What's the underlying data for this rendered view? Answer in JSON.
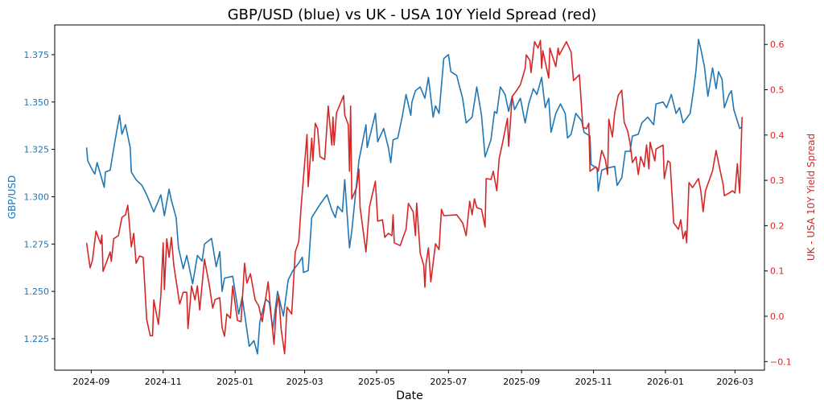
{
  "chart_data": {
    "type": "line",
    "title": "GBP/USD (blue) vs UK - USA 10Y Yield Spread (red)",
    "xlabel": "Date",
    "xlim": [
      "2024-08-01",
      "2026-03-26"
    ],
    "x_ticks": [
      "2024-09",
      "2024-11",
      "2025-01",
      "2025-03",
      "2025-05",
      "2025-07",
      "2025-09",
      "2025-11",
      "2026-01",
      "2026-03"
    ],
    "grid": false,
    "legend": "none",
    "left_axis": {
      "label": "GBP/USD",
      "color": "#1f77b4",
      "ylim": [
        1.2084,
        1.3907
      ],
      "ticks": [
        "1.225",
        "1.250",
        "1.275",
        "1.300",
        "1.325",
        "1.350",
        "1.375"
      ]
    },
    "right_axis": {
      "label": "UK - USA 10Y Yield Spread",
      "color": "#d62728",
      "ylim": [
        -0.119,
        0.643
      ],
      "ticks": [
        "−0.1",
        "0.0",
        "0.1",
        "0.2",
        "0.3",
        "0.4",
        "0.5",
        "0.6"
      ]
    },
    "series": [
      {
        "axis": "left",
        "color": "#1f77b4",
        "dates": [
          "2024-08-28",
          "2024-08-29",
          "2024-09-02",
          "2024-09-04",
          "2024-09-06",
          "2024-09-12",
          "2024-09-13",
          "2024-09-17",
          "2024-09-21",
          "2024-09-25",
          "2024-09-27",
          "2024-09-30",
          "2024-10-04",
          "2024-10-05",
          "2024-10-09",
          "2024-10-14",
          "2024-10-18",
          "2024-10-24",
          "2024-10-30",
          "2024-11-02",
          "2024-11-06",
          "2024-11-08",
          "2024-11-12",
          "2024-11-14",
          "2024-11-18",
          "2024-11-21",
          "2024-11-26",
          "2024-11-30",
          "2024-12-04",
          "2024-12-06",
          "2024-12-12",
          "2024-12-16",
          "2024-12-19",
          "2024-12-21",
          "2024-12-23",
          "2024-12-30",
          "2025-01-04",
          "2025-01-07",
          "2025-01-13",
          "2025-01-17",
          "2025-01-20",
          "2025-01-22",
          "2025-01-27",
          "2025-01-30",
          "2025-02-02",
          "2025-02-06",
          "2025-02-11",
          "2025-02-15",
          "2025-02-19",
          "2025-02-24",
          "2025-02-27",
          "2025-02-28",
          "2025-03-04",
          "2025-03-07",
          "2025-03-11",
          "2025-03-14",
          "2025-03-20",
          "2025-03-24",
          "2025-03-27",
          "2025-03-29",
          "2025-04-02",
          "2025-04-04",
          "2025-04-08",
          "2025-04-10",
          "2025-04-16",
          "2025-04-22",
          "2025-04-23",
          "2025-04-30",
          "2025-05-02",
          "2025-05-07",
          "2025-05-11",
          "2025-05-13",
          "2025-05-15",
          "2025-05-19",
          "2025-05-23",
          "2025-05-26",
          "2025-05-30",
          "2025-05-31",
          "2025-06-03",
          "2025-06-07",
          "2025-06-11",
          "2025-06-14",
          "2025-06-18",
          "2025-06-20",
          "2025-06-23",
          "2025-06-27",
          "2025-07-01",
          "2025-07-03",
          "2025-07-08",
          "2025-07-10",
          "2025-07-13",
          "2025-07-16",
          "2025-07-21",
          "2025-07-25",
          "2025-07-29",
          "2025-08-01",
          "2025-08-06",
          "2025-08-09",
          "2025-08-11",
          "2025-08-14",
          "2025-08-18",
          "2025-08-21",
          "2025-08-24",
          "2025-08-26",
          "2025-08-31",
          "2025-09-04",
          "2025-09-07",
          "2025-09-11",
          "2025-09-14",
          "2025-09-18",
          "2025-09-21",
          "2025-09-24",
          "2025-09-26",
          "2025-09-30",
          "2025-10-04",
          "2025-10-08",
          "2025-10-10",
          "2025-10-13",
          "2025-10-17",
          "2025-10-22",
          "2025-10-24",
          "2025-10-29",
          "2025-10-30",
          "2025-11-04",
          "2025-11-05",
          "2025-11-08",
          "2025-11-12",
          "2025-11-19",
          "2025-11-21",
          "2025-11-25",
          "2025-11-28",
          "2025-12-02",
          "2025-12-04",
          "2025-12-09",
          "2025-12-12",
          "2025-12-17",
          "2025-12-22",
          "2025-12-24",
          "2025-12-30",
          "2026-01-02",
          "2026-01-06",
          "2026-01-10",
          "2026-01-13",
          "2026-01-16",
          "2026-01-22",
          "2026-01-25",
          "2026-01-27",
          "2026-01-29",
          "2026-01-31",
          "2026-02-03",
          "2026-02-06",
          "2026-02-10",
          "2026-02-13",
          "2026-02-15",
          "2026-02-18",
          "2026-02-20",
          "2026-02-24",
          "2026-02-26",
          "2026-02-28",
          "2026-03-03",
          "2026-03-05",
          "2026-03-07"
        ],
        "values": [
          1.326,
          1.319,
          1.314,
          1.312,
          1.318,
          1.305,
          1.313,
          1.314,
          1.329,
          1.343,
          1.333,
          1.338,
          1.326,
          1.313,
          1.309,
          1.306,
          1.301,
          1.292,
          1.301,
          1.29,
          1.304,
          1.298,
          1.289,
          1.273,
          1.262,
          1.269,
          1.254,
          1.269,
          1.266,
          1.275,
          1.278,
          1.263,
          1.271,
          1.25,
          1.257,
          1.258,
          1.238,
          1.247,
          1.221,
          1.224,
          1.217,
          1.234,
          1.246,
          1.244,
          1.23,
          1.25,
          1.237,
          1.256,
          1.261,
          1.265,
          1.268,
          1.26,
          1.261,
          1.289,
          1.293,
          1.296,
          1.301,
          1.293,
          1.289,
          1.295,
          1.292,
          1.309,
          1.273,
          1.282,
          1.319,
          1.338,
          1.326,
          1.344,
          1.329,
          1.336,
          1.326,
          1.318,
          1.33,
          1.331,
          1.343,
          1.354,
          1.343,
          1.35,
          1.356,
          1.358,
          1.352,
          1.363,
          1.342,
          1.348,
          1.344,
          1.373,
          1.375,
          1.366,
          1.364,
          1.359,
          1.352,
          1.339,
          1.342,
          1.358,
          1.343,
          1.321,
          1.33,
          1.345,
          1.344,
          1.358,
          1.354,
          1.345,
          1.353,
          1.346,
          1.352,
          1.339,
          1.349,
          1.357,
          1.354,
          1.363,
          1.347,
          1.352,
          1.334,
          1.344,
          1.349,
          1.344,
          1.331,
          1.333,
          1.344,
          1.34,
          1.334,
          1.332,
          1.317,
          1.315,
          1.303,
          1.314,
          1.315,
          1.316,
          1.306,
          1.31,
          1.324,
          1.324,
          1.332,
          1.333,
          1.339,
          1.342,
          1.338,
          1.349,
          1.35,
          1.347,
          1.354,
          1.344,
          1.347,
          1.339,
          1.344,
          1.357,
          1.367,
          1.383,
          1.378,
          1.369,
          1.353,
          1.368,
          1.357,
          1.366,
          1.362,
          1.347,
          1.354,
          1.356,
          1.346,
          1.34,
          1.336,
          1.337
        ]
      },
      {
        "axis": "right",
        "color": "#d62728",
        "dates": [
          "2024-08-28",
          "2024-08-31",
          "2024-09-02",
          "2024-09-05",
          "2024-09-09",
          "2024-09-10",
          "2024-09-11",
          "2024-09-17",
          "2024-09-18",
          "2024-09-20",
          "2024-09-24",
          "2024-09-27",
          "2024-09-30",
          "2024-10-02",
          "2024-10-05",
          "2024-10-07",
          "2024-10-09",
          "2024-10-12",
          "2024-10-15",
          "2024-10-18",
          "2024-10-21",
          "2024-10-23",
          "2024-10-24",
          "2024-10-28",
          "2024-10-30",
          "2024-11-01",
          "2024-11-02",
          "2024-11-04",
          "2024-11-06",
          "2024-11-08",
          "2024-11-10",
          "2024-11-15",
          "2024-11-18",
          "2024-11-21",
          "2024-11-22",
          "2024-11-25",
          "2024-11-28",
          "2024-11-30",
          "2024-12-02",
          "2024-12-06",
          "2024-12-10",
          "2024-12-13",
          "2024-12-15",
          "2024-12-19",
          "2024-12-21",
          "2024-12-23",
          "2024-12-25",
          "2024-12-28",
          "2024-12-30",
          "2025-01-01",
          "2025-01-03",
          "2025-01-06",
          "2025-01-09",
          "2025-01-11",
          "2025-01-14",
          "2025-01-18",
          "2025-01-21",
          "2025-01-24",
          "2025-01-29",
          "2025-01-31",
          "2025-02-03",
          "2025-02-05",
          "2025-02-07",
          "2025-02-09",
          "2025-02-12",
          "2025-02-14",
          "2025-02-18",
          "2025-02-21",
          "2025-02-24",
          "2025-02-26",
          "2025-03-03",
          "2025-03-04",
          "2025-03-07",
          "2025-03-08",
          "2025-03-10",
          "2025-03-12",
          "2025-03-14",
          "2025-03-18",
          "2025-03-21",
          "2025-03-24",
          "2025-03-25",
          "2025-03-26",
          "2025-03-28",
          "2025-04-03",
          "2025-04-04",
          "2025-04-07",
          "2025-04-08",
          "2025-04-09",
          "2025-04-10",
          "2025-04-14",
          "2025-04-16",
          "2025-04-17",
          "2025-04-22",
          "2025-04-25",
          "2025-04-30",
          "2025-05-02",
          "2025-05-06",
          "2025-05-08",
          "2025-05-11",
          "2025-05-14",
          "2025-05-15",
          "2025-05-16",
          "2025-05-21",
          "2025-05-26",
          "2025-05-28",
          "2025-06-01",
          "2025-06-03",
          "2025-06-04",
          "2025-06-07",
          "2025-06-10",
          "2025-06-11",
          "2025-06-12",
          "2025-06-14",
          "2025-06-16",
          "2025-06-20",
          "2025-06-23",
          "2025-06-25",
          "2025-06-27",
          "2025-07-08",
          "2025-07-13",
          "2025-07-16",
          "2025-07-19",
          "2025-07-21",
          "2025-07-23",
          "2025-07-25",
          "2025-07-29",
          "2025-08-01",
          "2025-08-02",
          "2025-08-06",
          "2025-08-08",
          "2025-08-11",
          "2025-08-13",
          "2025-08-16",
          "2025-08-20",
          "2025-08-21",
          "2025-08-24",
          "2025-08-28",
          "2025-08-31",
          "2025-09-04",
          "2025-09-05",
          "2025-09-08",
          "2025-09-09",
          "2025-09-11",
          "2025-09-12",
          "2025-09-15",
          "2025-09-17",
          "2025-09-18",
          "2025-09-19",
          "2025-09-24",
          "2025-09-25",
          "2025-09-30",
          "2025-10-02",
          "2025-10-03",
          "2025-10-09",
          "2025-10-13",
          "2025-10-15",
          "2025-10-20",
          "2025-10-23",
          "2025-10-26",
          "2025-10-28",
          "2025-10-29",
          "2025-11-03",
          "2025-11-05",
          "2025-11-08",
          "2025-11-11",
          "2025-11-13",
          "2025-11-14",
          "2025-11-17",
          "2025-11-19",
          "2025-11-22",
          "2025-11-25",
          "2025-11-27",
          "2025-11-30",
          "2025-12-02",
          "2025-12-04",
          "2025-12-07",
          "2025-12-09",
          "2025-12-11",
          "2025-12-14",
          "2025-12-16",
          "2025-12-18",
          "2025-12-19",
          "2025-12-23",
          "2025-12-24",
          "2025-12-30",
          "2025-12-31",
          "2026-01-03",
          "2026-01-05",
          "2026-01-08",
          "2026-01-12",
          "2026-01-14",
          "2026-01-16",
          "2026-01-18",
          "2026-01-19",
          "2026-01-21",
          "2026-01-24",
          "2026-01-29",
          "2026-01-31",
          "2026-02-02",
          "2026-02-04",
          "2026-02-10",
          "2026-02-13",
          "2026-02-15",
          "2026-02-19",
          "2026-02-20",
          "2026-02-24",
          "2026-02-27",
          "2026-03-01",
          "2026-03-03",
          "2026-03-05",
          "2026-03-07"
        ],
        "values": [
          0.162,
          0.107,
          0.124,
          0.188,
          0.16,
          0.179,
          0.099,
          0.142,
          0.121,
          0.171,
          0.178,
          0.218,
          0.224,
          0.245,
          0.153,
          0.183,
          0.117,
          0.133,
          0.13,
          -0.007,
          -0.043,
          -0.043,
          0.036,
          -0.018,
          0.046,
          0.162,
          0.059,
          0.171,
          0.13,
          0.174,
          0.112,
          0.027,
          0.053,
          0.053,
          -0.027,
          0.067,
          0.036,
          0.067,
          0.014,
          0.126,
          0.071,
          0.018,
          0.037,
          0.041,
          -0.025,
          -0.044,
          0.005,
          -0.004,
          0.067,
          0.028,
          -0.009,
          -0.012,
          0.117,
          0.073,
          0.094,
          0.036,
          0.023,
          -0.012,
          0.076,
          0.018,
          -0.062,
          0.018,
          0.046,
          -0.027,
          -0.083,
          0.02,
          0.005,
          0.142,
          0.165,
          0.242,
          0.401,
          0.286,
          0.393,
          0.343,
          0.426,
          0.414,
          0.352,
          0.346,
          0.464,
          0.378,
          0.44,
          0.378,
          0.449,
          0.487,
          0.444,
          0.423,
          0.32,
          0.464,
          0.259,
          0.284,
          0.325,
          0.24,
          0.142,
          0.242,
          0.298,
          0.21,
          0.213,
          0.174,
          0.183,
          0.178,
          0.224,
          0.162,
          0.156,
          0.192,
          0.249,
          0.231,
          0.178,
          0.25,
          0.139,
          0.112,
          0.064,
          0.117,
          0.151,
          0.076,
          0.16,
          0.147,
          0.236,
          0.222,
          0.224,
          0.206,
          0.178,
          0.254,
          0.224,
          0.259,
          0.24,
          0.236,
          0.197,
          0.304,
          0.302,
          0.32,
          0.277,
          0.348,
          0.384,
          0.437,
          0.375,
          0.485,
          0.499,
          0.511,
          0.547,
          0.577,
          0.565,
          0.538,
          0.583,
          0.606,
          0.592,
          0.609,
          0.547,
          0.586,
          0.526,
          0.592,
          0.551,
          0.592,
          0.577,
          0.606,
          0.583,
          0.52,
          0.533,
          0.417,
          0.414,
          0.426,
          0.32,
          0.33,
          0.32,
          0.366,
          0.346,
          0.313,
          0.435,
          0.396,
          0.449,
          0.488,
          0.499,
          0.428,
          0.409,
          0.382,
          0.339,
          0.352,
          0.313,
          0.352,
          0.33,
          0.378,
          0.325,
          0.384,
          0.343,
          0.369,
          0.378,
          0.304,
          0.343,
          0.339,
          0.206,
          0.192,
          0.213,
          0.171,
          0.188,
          0.162,
          0.295,
          0.284,
          0.304,
          0.277,
          0.231,
          0.277,
          0.321,
          0.366,
          0.339,
          0.29,
          0.266,
          0.272,
          0.277,
          0.272,
          0.337,
          0.272,
          0.44
        ]
      }
    ]
  }
}
